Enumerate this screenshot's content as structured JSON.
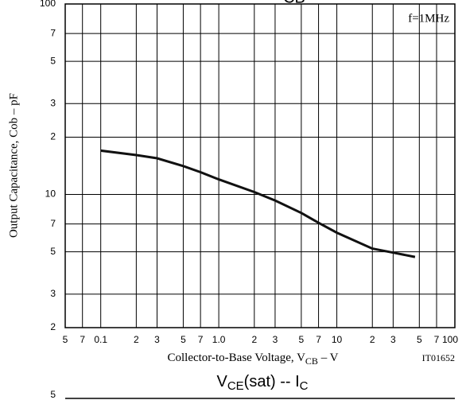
{
  "chart_data": {
    "type": "line",
    "title_fragment": "CB",
    "y_label": "Output Capacitance, Cob  –  pF",
    "x_label": {
      "text": "Collector-to-Base Voltage, V",
      "subscript": "CB",
      "suffix": "  –  V"
    },
    "annotation": "f=1MHz",
    "figure_code": "IT01652",
    "log_x": true,
    "log_y": true,
    "grid": true,
    "color": "#111111",
    "xlim": [
      0.05,
      100
    ],
    "ylim": [
      2,
      100
    ],
    "xticks": [
      {
        "value": 0.05,
        "label": "5"
      },
      {
        "value": 0.07,
        "label": "7"
      },
      0.1,
      {
        "value": 0.2,
        "label": "2"
      },
      {
        "value": 0.3,
        "label": "3"
      },
      {
        "value": 0.5,
        "label": "5"
      },
      {
        "value": 0.7,
        "label": "7"
      },
      {
        "value": 1,
        "label": "1.0"
      },
      {
        "value": 2,
        "label": "2"
      },
      {
        "value": 3,
        "label": "3"
      },
      {
        "value": 5,
        "label": "5"
      },
      {
        "value": 7,
        "label": "7"
      },
      10,
      {
        "value": 20,
        "label": "2"
      },
      {
        "value": 30,
        "label": "3"
      },
      {
        "value": 50,
        "label": "5"
      },
      {
        "value": 70,
        "label": "7"
      },
      100
    ],
    "yticks": [
      2,
      3,
      5,
      7,
      10,
      {
        "value": 20,
        "label": "2"
      },
      {
        "value": 30,
        "label": "3"
      },
      {
        "value": 50,
        "label": "5"
      },
      {
        "value": 70,
        "label": "7"
      },
      100
    ],
    "x": [
      0.1,
      0.2,
      0.3,
      0.5,
      0.7,
      1,
      2,
      3,
      5,
      7,
      10,
      20,
      30,
      46
    ],
    "values": [
      17,
      16.1,
      15.5,
      14.1,
      13.1,
      12,
      10.3,
      9.3,
      8,
      7.1,
      6.3,
      5.2,
      4.95,
      4.7
    ]
  },
  "next_chart": {
    "title": {
      "v": "V",
      "v_sub": "CE",
      "mid": "(sat)  --  I",
      "i_sub": "C"
    },
    "ytick": "5"
  }
}
